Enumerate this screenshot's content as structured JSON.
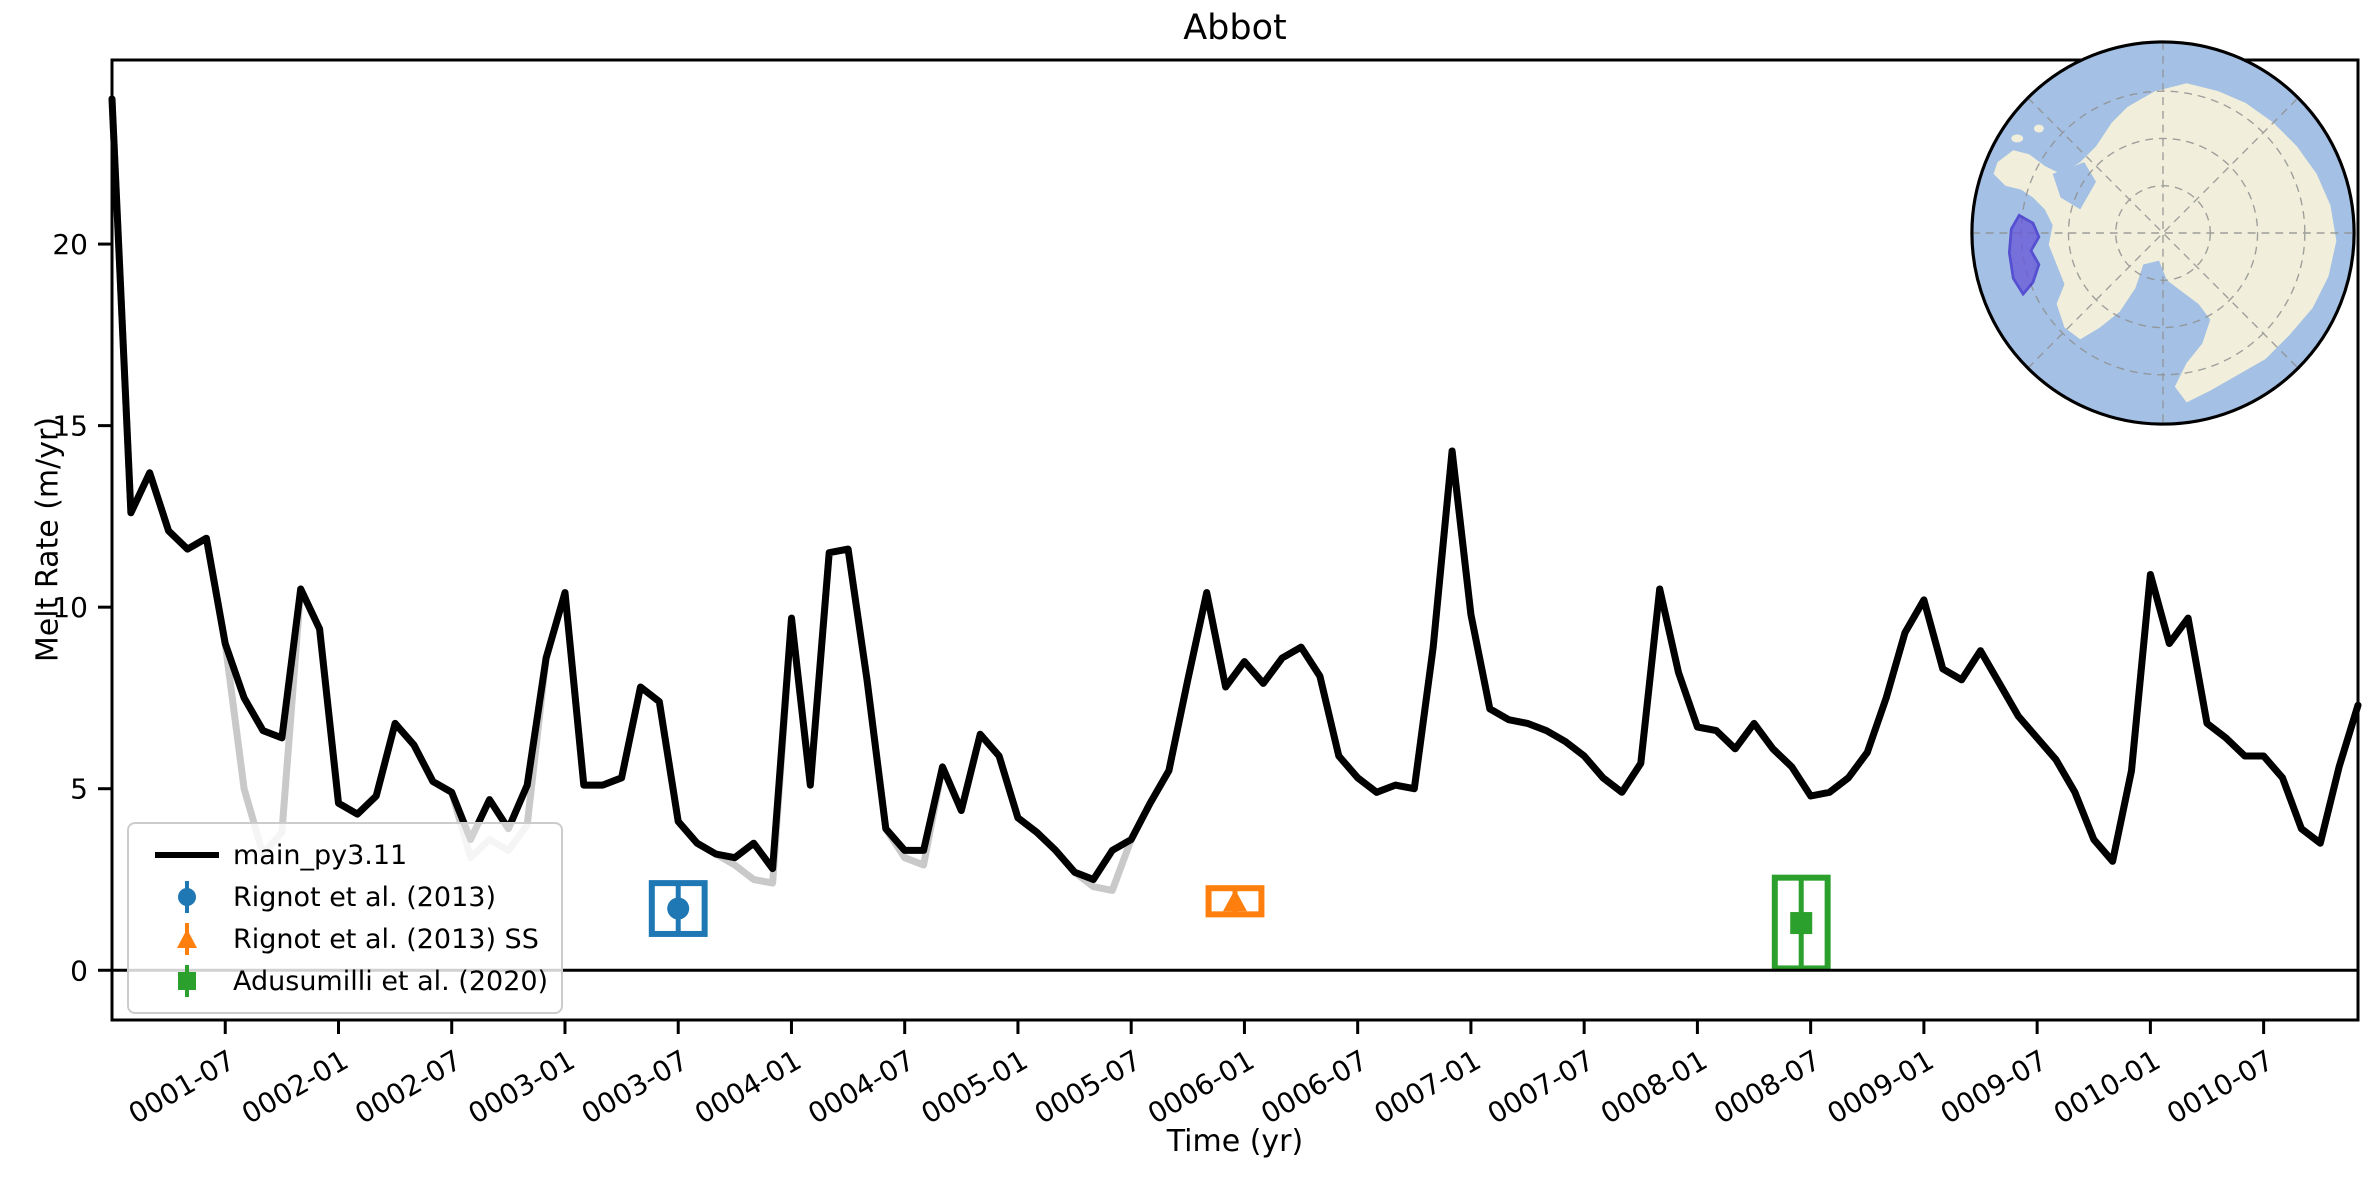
{
  "page": {
    "background": "#ffffff"
  },
  "chart_data": {
    "type": "line",
    "title": "Abbot",
    "xlabel": "Time (yr)",
    "ylabel": "Melt Rate (m/yr)",
    "x_start": "0001-01",
    "x_step": "1 month",
    "months_total": 120,
    "x_tick_labels": [
      "0001-07",
      "0002-01",
      "0002-07",
      "0003-01",
      "0003-07",
      "0004-01",
      "0004-07",
      "0005-01",
      "0005-07",
      "0006-01",
      "0006-07",
      "0007-01",
      "0007-07",
      "0008-01",
      "0008-07",
      "0009-01",
      "0009-07",
      "0010-01",
      "0010-07"
    ],
    "x_tick_rotation_deg": 30,
    "y_ticks": [
      0,
      5,
      10,
      15,
      20
    ],
    "ylim": [
      -1.37,
      25.07
    ],
    "grid": false,
    "zero_line": true,
    "legend_position": "lower left",
    "series": [
      {
        "name": "main_py3.11",
        "color": "#000000",
        "line_width": 7,
        "values": [
          24.0,
          12.6,
          13.7,
          12.1,
          11.6,
          11.9,
          9.0,
          7.5,
          6.6,
          6.4,
          10.5,
          9.4,
          4.6,
          4.3,
          4.8,
          6.8,
          6.2,
          5.2,
          4.9,
          3.6,
          4.7,
          3.9,
          5.1,
          8.6,
          10.4,
          5.1,
          5.1,
          5.3,
          7.8,
          7.4,
          4.1,
          3.5,
          3.2,
          3.1,
          3.5,
          2.8,
          9.7,
          5.1,
          11.5,
          11.6,
          8.0,
          3.9,
          3.3,
          3.3,
          5.6,
          4.4,
          6.5,
          5.9,
          4.2,
          3.8,
          3.3,
          2.7,
          2.5,
          3.3,
          3.6,
          4.6,
          5.5,
          8.0,
          10.4,
          7.8,
          8.5,
          7.9,
          8.6,
          8.9,
          8.1,
          5.9,
          5.3,
          4.9,
          5.1,
          5.0,
          8.9,
          14.3,
          9.8,
          7.2,
          6.9,
          6.8,
          6.6,
          6.3,
          5.9,
          5.3,
          4.9,
          5.7,
          10.5,
          8.2,
          6.7,
          6.6,
          6.1,
          6.8,
          6.1,
          5.6,
          4.8,
          4.9,
          5.3,
          6.0,
          7.5,
          9.3,
          10.2,
          8.3,
          8.0,
          8.8,
          7.9,
          7.0,
          6.4,
          5.8,
          4.9,
          3.6,
          3.0,
          5.5,
          10.9,
          9.0,
          9.7,
          6.8,
          6.4,
          5.9,
          5.9,
          5.3,
          3.9,
          3.5,
          5.6,
          7.3
        ]
      },
      {
        "name": "background-gray-run (unlabeled)",
        "color": "#c9c9c9",
        "line_width": 7,
        "derived_from": "main_py3.11",
        "overrides": {
          "7": 5.0,
          "8": 3.2,
          "9": 3.8,
          "19": 3.1,
          "20": 3.6,
          "21": 3.3,
          "22": 4.0,
          "33": 2.9,
          "34": 2.5,
          "35": 2.4,
          "42": 3.1,
          "43": 2.9,
          "52": 2.3,
          "53": 2.2
        }
      }
    ],
    "observations": [
      {
        "name": "Rignot et al. (2013)",
        "color": "#1f77b4",
        "marker": "circle",
        "date": "0003-07",
        "month_index": 30.0,
        "value": 1.7,
        "yerr": 0.7,
        "xerr_months": 1.4
      },
      {
        "name": "Rignot et al. (2013) SS",
        "color": "#ff7f0e",
        "marker": "triangle",
        "date": "0006-01",
        "month_index": 59.5,
        "value": 1.9,
        "yerr": 0.36,
        "xerr_months": 1.4
      },
      {
        "name": "Adusumilli et al. (2020)",
        "color": "#2ca02c",
        "marker": "square",
        "date": "0008-07",
        "month_index": 89.5,
        "value": 1.3,
        "yerr": 1.25,
        "xerr_months": 1.4
      }
    ]
  },
  "inset_map": {
    "description": "South polar stereographic locator globe of Antarctica",
    "highlight_region": "Abbot ice shelf",
    "ocean_color": "#a4c0e4",
    "land_color": "#f1efdb",
    "graticule_color": "#909090",
    "globe_edge_color": "#000000",
    "highlight_fill": "#6a5cd8",
    "highlight_edge": "#4333cc"
  }
}
